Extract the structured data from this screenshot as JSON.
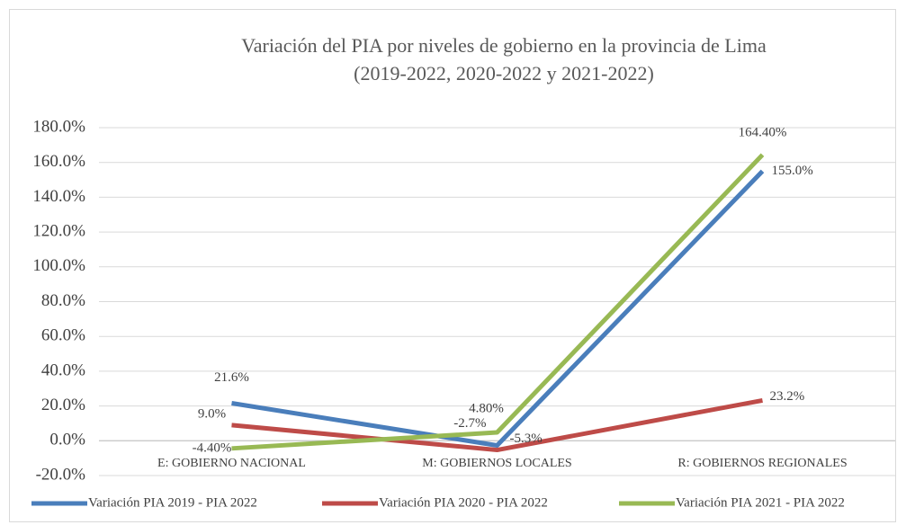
{
  "chart_data": {
    "type": "line",
    "title": [
      "Variación del PIA por niveles de gobierno en la provincia de Lima",
      "(2019-2022, 2020-2022 y 2021-2022)"
    ],
    "categories": [
      "E: GOBIERNO NACIONAL",
      "M: GOBIERNOS LOCALES",
      "R: GOBIERNOS REGIONALES"
    ],
    "series": [
      {
        "name": "Variación PIA 2019 - PIA 2022",
        "color": "#4a7ebb",
        "values": [
          21.6,
          -2.7,
          155.0
        ],
        "value_labels": [
          "21.6%",
          "-2.7%",
          "155.0%"
        ]
      },
      {
        "name": "Variación PIA 2020 - PIA 2022",
        "color": "#be4b48",
        "values": [
          9.0,
          -5.3,
          23.2
        ],
        "value_labels": [
          "9.0%",
          "-5.3%",
          "23.2%"
        ]
      },
      {
        "name": "Variación PIA 2021 - PIA 2022",
        "color": "#98b954",
        "values": [
          -4.4,
          4.8,
          164.4
        ],
        "value_labels": [
          "-4.40%",
          "4.80%",
          "164.40%"
        ]
      }
    ],
    "ylim": [
      -20,
      180
    ],
    "yticks": [
      {
        "value": -20,
        "label": "-20.0%"
      },
      {
        "value": 0,
        "label": "0.0%"
      },
      {
        "value": 20,
        "label": "20.0%"
      },
      {
        "value": 40,
        "label": "40.0%"
      },
      {
        "value": 60,
        "label": "60.0%"
      },
      {
        "value": 80,
        "label": "80.0%"
      },
      {
        "value": 100,
        "label": "100.0%"
      },
      {
        "value": 120,
        "label": "120.0%"
      },
      {
        "value": 140,
        "label": "140.0%"
      },
      {
        "value": 160,
        "label": "160.0%"
      },
      {
        "value": 180,
        "label": "180.0%"
      }
    ],
    "grid": true,
    "legend": "bottom"
  }
}
